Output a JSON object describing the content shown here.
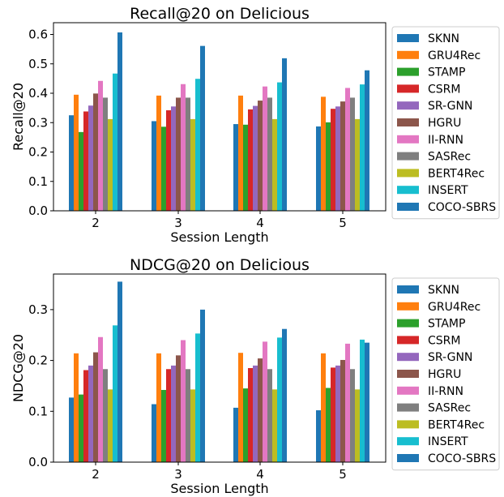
{
  "chart_data": [
    {
      "type": "bar",
      "title": "Recall@20 on Delicious",
      "xlabel": "Session Length",
      "ylabel": "Recall@20",
      "categories": [
        "2",
        "3",
        "4",
        "5"
      ],
      "ylim": [
        0,
        0.64
      ],
      "yticks": [
        "0.0",
        "0.1",
        "0.2",
        "0.3",
        "0.4",
        "0.5",
        "0.6"
      ],
      "legend_position": "right",
      "grid": false,
      "series": [
        {
          "name": "SKNN",
          "color": "#1f77b4",
          "values": [
            0.325,
            0.305,
            0.295,
            0.287
          ]
        },
        {
          "name": "GRU4Rec",
          "color": "#ff7f0e",
          "values": [
            0.395,
            0.392,
            0.392,
            0.388
          ]
        },
        {
          "name": "STAMP",
          "color": "#2ca02c",
          "values": [
            0.268,
            0.286,
            0.293,
            0.301
          ]
        },
        {
          "name": "CSRM",
          "color": "#d62728",
          "values": [
            0.338,
            0.342,
            0.345,
            0.347
          ]
        },
        {
          "name": "SR-GNN",
          "color": "#9467bd",
          "values": [
            0.358,
            0.355,
            0.357,
            0.355
          ]
        },
        {
          "name": "HGRU",
          "color": "#8c564b",
          "values": [
            0.399,
            0.385,
            0.375,
            0.372
          ]
        },
        {
          "name": "II-RNN",
          "color": "#e377c2",
          "values": [
            0.442,
            0.431,
            0.423,
            0.418
          ]
        },
        {
          "name": "SASRec",
          "color": "#7f7f7f",
          "values": [
            0.385,
            0.385,
            0.385,
            0.385
          ]
        },
        {
          "name": "BERT4Rec",
          "color": "#bcbd22",
          "values": [
            0.312,
            0.312,
            0.312,
            0.312
          ]
        },
        {
          "name": "INSERT",
          "color": "#17becf",
          "values": [
            0.467,
            0.449,
            0.437,
            0.43
          ]
        },
        {
          "name": "COCO-SBRS",
          "color": "#1f77b4",
          "values": [
            0.607,
            0.561,
            0.519,
            0.478
          ]
        }
      ]
    },
    {
      "type": "bar",
      "title": "NDCG@20 on Delicious",
      "xlabel": "Session Length",
      "ylabel": "NDCG@20",
      "categories": [
        "2",
        "3",
        "4",
        "5"
      ],
      "ylim": [
        0,
        0.37
      ],
      "yticks": [
        "0.0",
        "0.1",
        "0.2",
        "0.3"
      ],
      "legend_position": "right",
      "grid": false,
      "series": [
        {
          "name": "SKNN",
          "color": "#1f77b4",
          "values": [
            0.127,
            0.114,
            0.107,
            0.102
          ]
        },
        {
          "name": "GRU4Rec",
          "color": "#ff7f0e",
          "values": [
            0.214,
            0.214,
            0.215,
            0.214
          ]
        },
        {
          "name": "STAMP",
          "color": "#2ca02c",
          "values": [
            0.133,
            0.142,
            0.145,
            0.146
          ]
        },
        {
          "name": "CSRM",
          "color": "#d62728",
          "values": [
            0.181,
            0.183,
            0.185,
            0.186
          ]
        },
        {
          "name": "SR-GNN",
          "color": "#9467bd",
          "values": [
            0.19,
            0.19,
            0.19,
            0.19
          ]
        },
        {
          "name": "HGRU",
          "color": "#8c564b",
          "values": [
            0.216,
            0.21,
            0.204,
            0.201
          ]
        },
        {
          "name": "II-RNN",
          "color": "#e377c2",
          "values": [
            0.246,
            0.24,
            0.237,
            0.233
          ]
        },
        {
          "name": "SASRec",
          "color": "#7f7f7f",
          "values": [
            0.183,
            0.183,
            0.183,
            0.183
          ]
        },
        {
          "name": "BERT4Rec",
          "color": "#bcbd22",
          "values": [
            0.143,
            0.143,
            0.143,
            0.143
          ]
        },
        {
          "name": "INSERT",
          "color": "#17becf",
          "values": [
            0.269,
            0.253,
            0.245,
            0.241
          ]
        },
        {
          "name": "COCO-SBRS",
          "color": "#1f77b4",
          "values": [
            0.355,
            0.3,
            0.262,
            0.235
          ]
        }
      ]
    }
  ]
}
